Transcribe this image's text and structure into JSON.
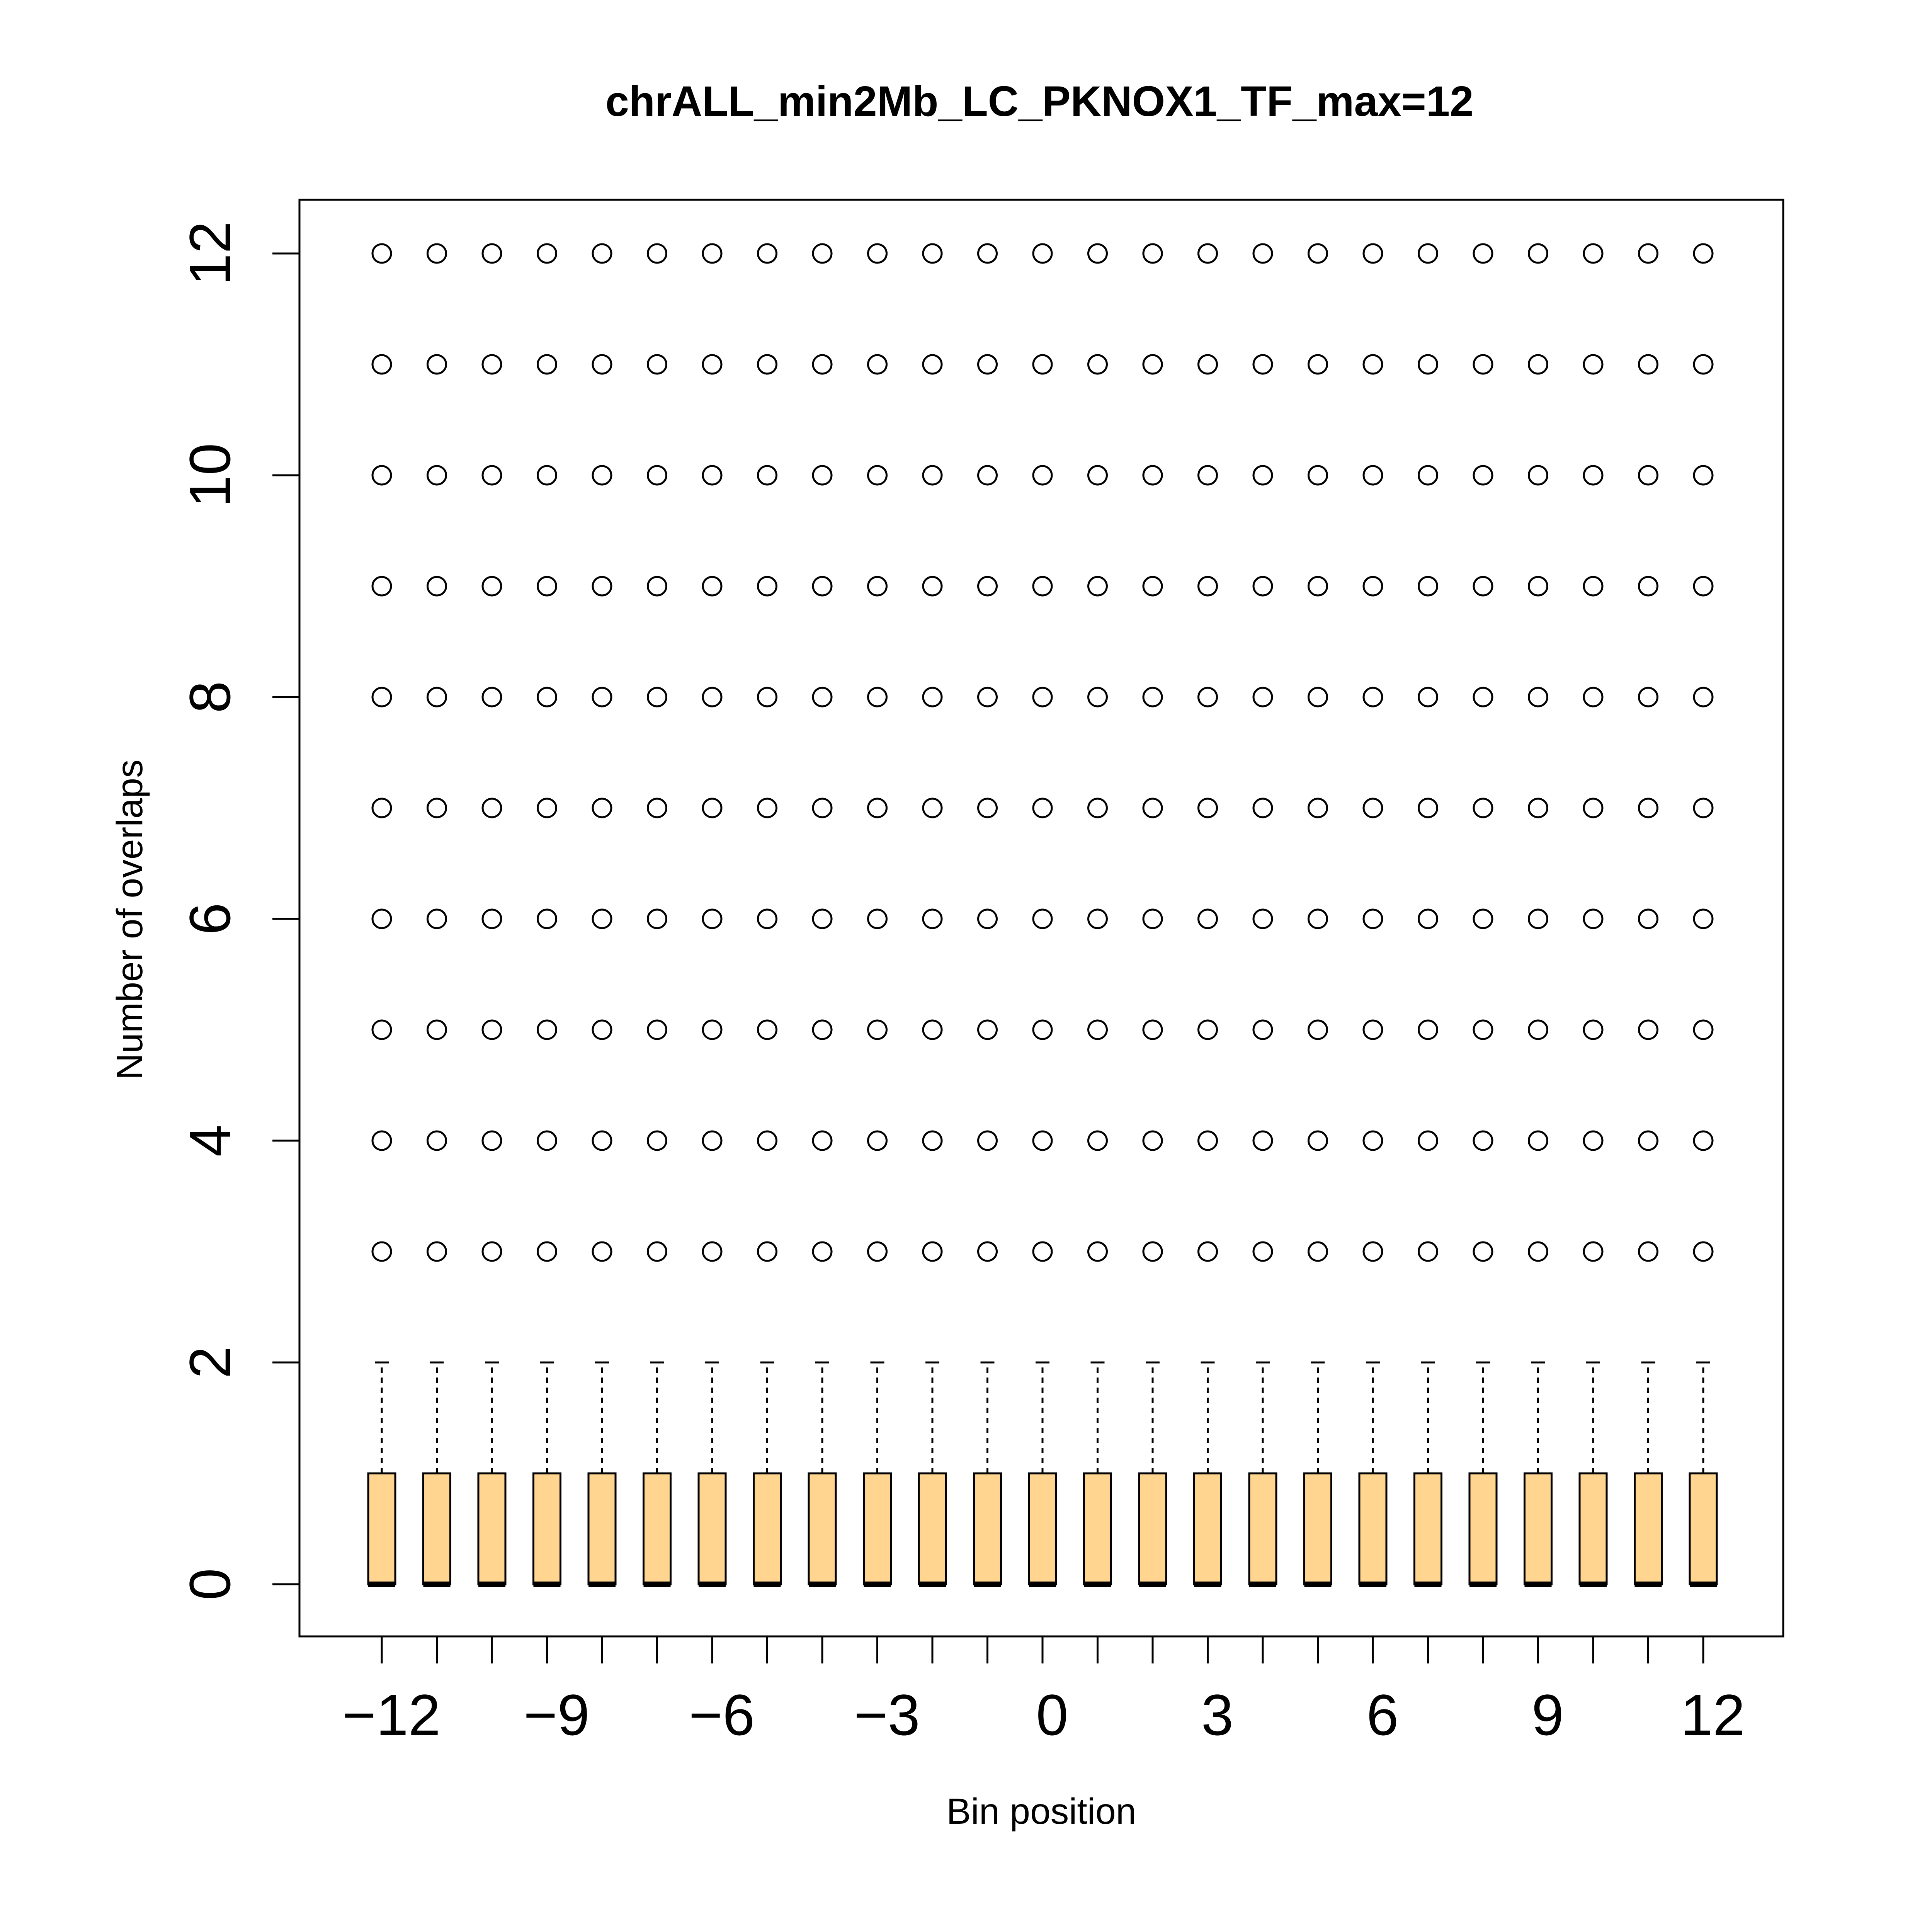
{
  "chart_data": {
    "type": "boxplot",
    "title": "chrALL_min2Mb_LC_PKNOX1_TF_max=12",
    "xlabel": "Bin position",
    "ylabel": "Number of overlaps",
    "x_ticks": [
      "−12",
      "−9",
      "−6",
      "−3",
      "0",
      "3",
      "6",
      "9",
      "12"
    ],
    "y_ticks": [
      "0",
      "2",
      "4",
      "6",
      "8",
      "10",
      "12"
    ],
    "ylim": [
      0,
      12
    ],
    "grid": false,
    "box_fill": "#FFD58F",
    "categories": [
      -12,
      -11,
      -10,
      -9,
      -8,
      -7,
      -6,
      -5,
      -4,
      -3,
      -2,
      -1,
      0,
      1,
      2,
      3,
      4,
      5,
      6,
      7,
      8,
      9,
      10,
      11,
      12
    ],
    "box": {
      "whisker_low": 0,
      "q1": 0,
      "median": 0,
      "q3": 1,
      "whisker_high": 2
    },
    "outliers": [
      3,
      4,
      5,
      6,
      7,
      8,
      9,
      10,
      11,
      12
    ]
  }
}
